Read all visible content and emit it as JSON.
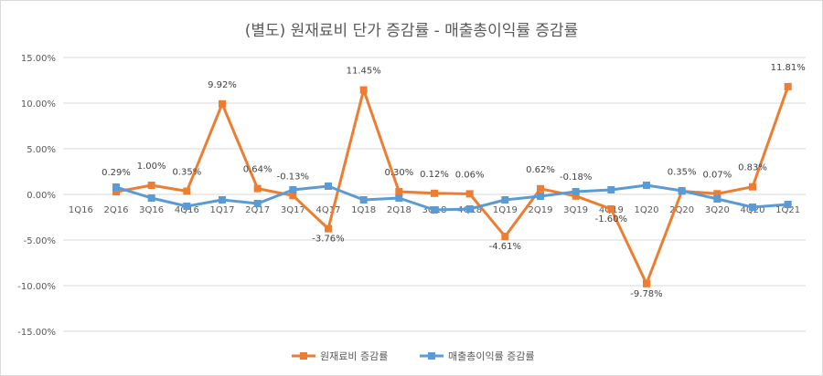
{
  "chart_data": {
    "type": "line",
    "title": "(별도) 원재료비 단가 증감률 - 매출총이익률 증감률",
    "categories": [
      "1Q16",
      "2Q16",
      "3Q16",
      "4Q16",
      "1Q17",
      "2Q17",
      "3Q17",
      "4Q17",
      "1Q18",
      "2Q18",
      "3Q18",
      "4Q18",
      "1Q19",
      "2Q19",
      "3Q19",
      "4Q19",
      "1Q20",
      "2Q20",
      "3Q20",
      "4Q20",
      "1Q21"
    ],
    "ylim": [
      -15,
      15
    ],
    "yticks": [
      "15.00%",
      "10.00%",
      "5.00%",
      "0.00%",
      "-5.00%",
      "-10.00%",
      "-15.00%"
    ],
    "ytick_values": [
      15,
      10,
      5,
      0,
      -5,
      -10,
      -15
    ],
    "grid": true,
    "legend": "bottom",
    "series": [
      {
        "name": "원재료비 증감률",
        "color": "#ED7D31",
        "values": [
          null,
          0.29,
          1.0,
          0.35,
          9.92,
          0.64,
          -0.13,
          -3.76,
          11.45,
          0.3,
          0.12,
          0.06,
          -4.61,
          0.62,
          -0.18,
          -1.6,
          -9.78,
          0.35,
          0.07,
          0.83,
          11.81
        ],
        "labels": [
          null,
          "0.29%",
          "1.00%",
          "0.35%",
          "9.92%",
          "0.64%",
          "-0.13%",
          "-3.76%",
          "11.45%",
          "0.30%",
          "0.12%",
          "0.06%",
          "-4.61%",
          "0.62%",
          "-0.18%",
          "-1.60%",
          "-9.78%",
          "0.35%",
          "0.07%",
          "0.83%",
          "11.81%"
        ]
      },
      {
        "name": "매출총이익률 증감률",
        "color": "#5B9BD5",
        "values": [
          null,
          0.8,
          -0.4,
          -1.3,
          -0.6,
          -1.0,
          0.5,
          0.9,
          -0.6,
          -0.4,
          -1.7,
          -1.6,
          -0.6,
          -0.2,
          0.3,
          0.5,
          1.0,
          0.4,
          -0.5,
          -1.4,
          -1.1
        ],
        "labels": []
      }
    ]
  }
}
